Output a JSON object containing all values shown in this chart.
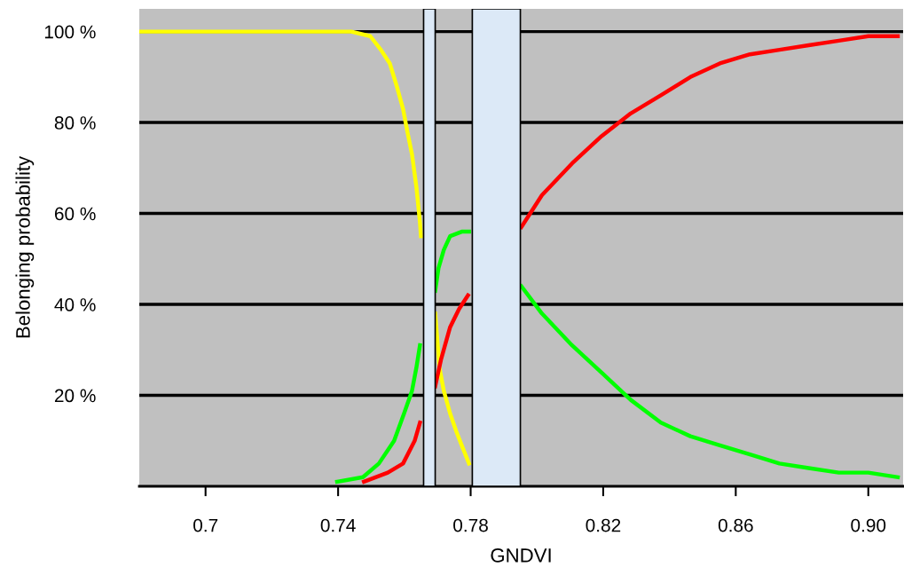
{
  "chart_data": {
    "type": "line",
    "xlabel": "GNDVI",
    "ylabel": "Belonging probability",
    "xlim": [
      0.68,
      0.9105
    ],
    "xticks": [
      0.7,
      0.74,
      0.78,
      0.82,
      0.86,
      {
        "value": 0.9,
        "label": "0.90"
      }
    ],
    "ylim": [
      0,
      105
    ],
    "yticks": [
      {
        "value": 20,
        "label": "20 %"
      },
      {
        "value": 40,
        "label": "40 %"
      },
      {
        "value": 60,
        "label": "60 %"
      },
      {
        "value": 80,
        "label": "80 %"
      },
      {
        "value": 100,
        "label": "100 %"
      }
    ],
    "grid": "y",
    "legend": false,
    "line_style": "solid",
    "marker": "none",
    "series": [
      {
        "color": "#ffff00",
        "x": [
          0.68,
          0.744,
          0.7497,
          0.7529,
          0.7556,
          0.7577,
          0.7596,
          0.7609,
          0.7623,
          0.7636,
          0.7647,
          0.765,
          0.767,
          0.7693,
          0.7706,
          0.7719,
          0.7738,
          0.7757,
          0.7773,
          0.7795
        ],
        "values": [
          100,
          100,
          99,
          96,
          93,
          88,
          83,
          78,
          73,
          66,
          58,
          55,
          null,
          38,
          26,
          21,
          16,
          12,
          9,
          5
        ]
      },
      {
        "color": "#00ff00",
        "x": [
          0.7397,
          0.7475,
          0.7523,
          0.7569,
          0.7599,
          0.7623,
          0.7636,
          0.7647,
          0.767,
          0.7693,
          0.7703,
          0.7719,
          0.7738,
          0.7773,
          0.7795,
          0.788,
          0.7953,
          0.8015,
          0.8106,
          0.8195,
          0.8283,
          0.8374,
          0.8463,
          0.8552,
          0.8643,
          0.8732,
          0.882,
          0.8911,
          0.9,
          0.9089
        ],
        "values": [
          1,
          2,
          5,
          10,
          16,
          21,
          26,
          31,
          null,
          43,
          48,
          52,
          55,
          56,
          56,
          null,
          44,
          38,
          31,
          25,
          19,
          14,
          11,
          9,
          7,
          5,
          4,
          3,
          3,
          2
        ]
      },
      {
        "color": "#ff0000",
        "x": [
          0.7478,
          0.755,
          0.7596,
          0.7631,
          0.7647,
          0.767,
          0.7693,
          0.7711,
          0.7738,
          0.7765,
          0.7792,
          0.788,
          0.7953,
          0.8015,
          0.8106,
          0.8195,
          0.8283,
          0.8374,
          0.8463,
          0.8552,
          0.8643,
          0.8732,
          0.882,
          0.8911,
          0.9,
          0.9089
        ],
        "values": [
          1,
          3,
          5,
          10,
          14,
          null,
          22,
          28,
          35,
          39,
          42,
          null,
          57,
          64,
          71,
          77,
          82,
          86,
          90,
          93,
          95,
          96,
          97,
          98,
          99,
          99
        ]
      }
    ],
    "bands": [
      {
        "axis": "x",
        "from": 0.7658,
        "to": 0.7693,
        "color": "#dce9f7"
      },
      {
        "axis": "x",
        "from": 0.7805,
        "to": 0.795,
        "color": "#dce9f7"
      }
    ]
  }
}
